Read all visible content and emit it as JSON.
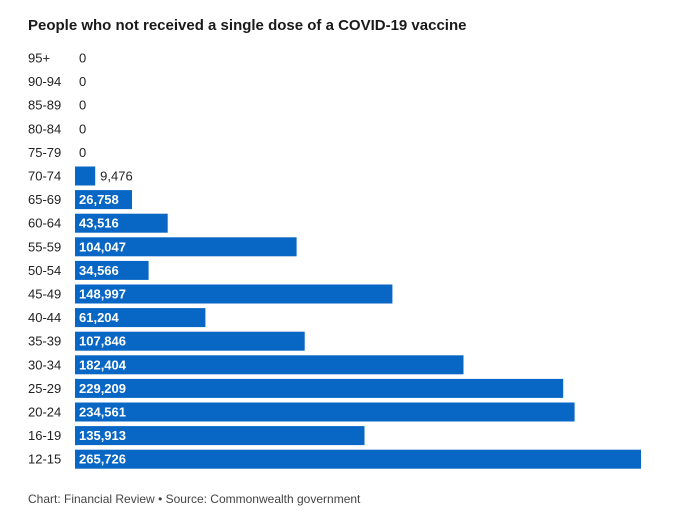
{
  "title": "People who not received a single dose of a COVID-19 vaccine",
  "footer": {
    "credit": "Chart: Financial Review",
    "separator": "•",
    "source": "Source: Commonwealth government"
  },
  "colors": {
    "bar": "#0866c4",
    "label_inside": "#ffffff",
    "label_outside": "#222222",
    "axis_text": "#222222"
  },
  "chart_data": {
    "type": "bar",
    "orientation": "horizontal",
    "categories": [
      "95+",
      "90-94",
      "85-89",
      "80-84",
      "75-79",
      "70-74",
      "65-69",
      "60-64",
      "55-59",
      "50-54",
      "45-49",
      "40-44",
      "35-39",
      "30-34",
      "25-29",
      "20-24",
      "16-19",
      "12-15"
    ],
    "values": [
      0,
      0,
      0,
      0,
      0,
      9476,
      26758,
      43516,
      104047,
      34566,
      148997,
      61204,
      107846,
      182404,
      229209,
      234561,
      135913,
      265726
    ],
    "value_labels": [
      "0",
      "0",
      "0",
      "0",
      "0",
      "9,476",
      "26,758",
      "43,516",
      "104,047",
      "34,566",
      "148,997",
      "61,204",
      "107,846",
      "182,404",
      "229,209",
      "234,561",
      "135,913",
      "265,726"
    ],
    "title": "People who not received a single dose of a COVID-19 vaccine",
    "xlabel": "",
    "ylabel": "",
    "xlim": [
      0,
      265726
    ],
    "grid": false,
    "legend": "none"
  }
}
